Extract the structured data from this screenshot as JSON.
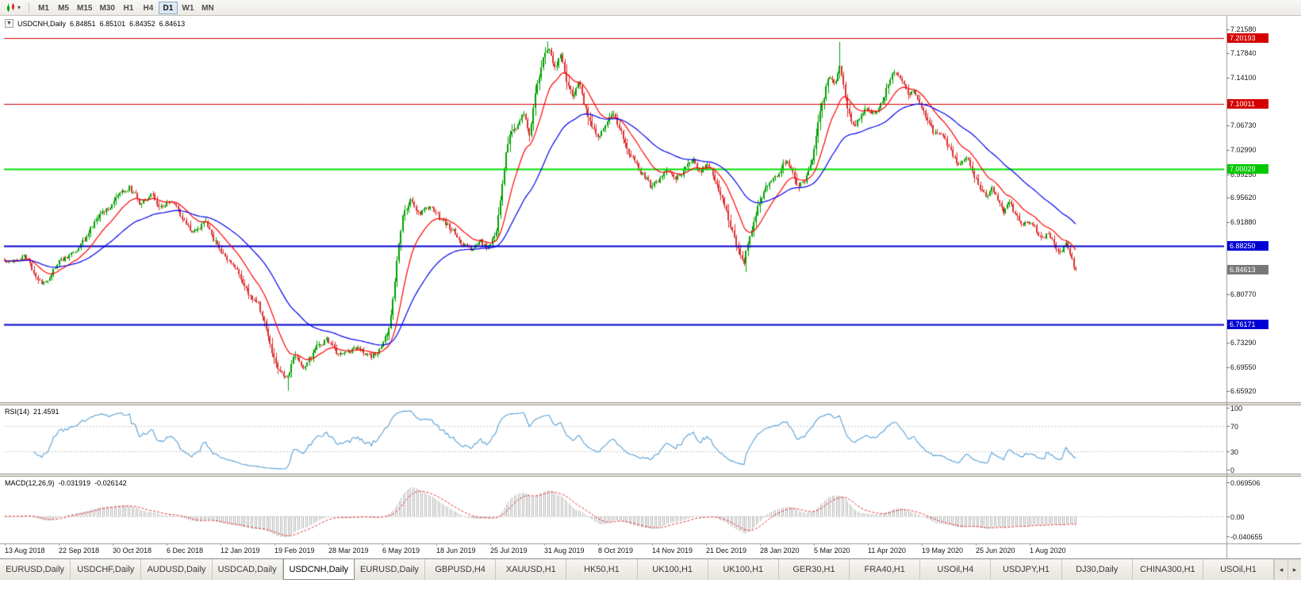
{
  "toolbar": {
    "timeframes": [
      "M1",
      "M5",
      "M15",
      "M30",
      "H1",
      "H4",
      "D1",
      "W1",
      "MN"
    ],
    "active_timeframe": "D1",
    "chart_icon": "candlestick-chart",
    "caret": "▾"
  },
  "chart_header": {
    "collapse_arrow": "▼",
    "symbol": "USDCNH,Daily",
    "open": "6.84851",
    "high": "6.85101",
    "low": "6.84352",
    "close": "6.84613"
  },
  "price_scale": {
    "ticks": [
      "7.21580",
      "7.17840",
      "7.14100",
      "7.06730",
      "7.02990",
      "6.99250",
      "6.95620",
      "6.91880",
      "6.80770",
      "6.73290",
      "6.69550",
      "6.65920"
    ],
    "tags": [
      {
        "label": "7.20193",
        "color": "#d40000"
      },
      {
        "label": "7.10011",
        "color": "#d40000"
      },
      {
        "label": "7.00029",
        "color": "#00c800"
      },
      {
        "label": "6.88250",
        "color": "#0000d4"
      },
      {
        "label": "6.84613",
        "color": "#787878"
      },
      {
        "label": "6.76171",
        "color": "#0000d4"
      }
    ]
  },
  "x_axis": {
    "labels": [
      "13 Aug 2018",
      "22 Sep 2018",
      "30 Oct 2018",
      "6 Dec 2018",
      "12 Jan 2019",
      "19 Feb 2019",
      "28 Mar 2019",
      "6 May 2019",
      "18 Jun 2019",
      "25 Jul 2019",
      "31 Aug 2019",
      "8 Oct 2019",
      "14 Nov 2019",
      "21 Dec 2019",
      "28 Jan 2020",
      "5 Mar 2020",
      "11 Apr 2020",
      "19 May 2020",
      "25 Jun 2020",
      "1 Aug 2020"
    ]
  },
  "rsi_panel": {
    "name": "RSI(14)",
    "value": "21.4591",
    "scale": [
      "100",
      "70",
      "30",
      "0"
    ],
    "levels": [
      70,
      30
    ],
    "line_color": "#569fd6"
  },
  "macd_panel": {
    "name": "MACD(12,26,9)",
    "macd_value": "-0.031919",
    "signal_value": "-0.026142",
    "scale": [
      "0.069506",
      "0.00",
      "-0.040655"
    ],
    "histogram_color": "#b9b9b9",
    "signal_color": "#e33030"
  },
  "chart_data": {
    "type": "candlestick",
    "symbol": "USDCNH",
    "timeframe": "Daily",
    "last": {
      "open": 6.84851,
      "high": 6.85101,
      "low": 6.84352,
      "close": 6.84613
    },
    "y_range": [
      6.6418,
      7.2335
    ],
    "num_candles": 550,
    "up_color": "#00a000",
    "down_color": "#dc3030",
    "ma_fast": {
      "period": 16,
      "color": "#ff0000"
    },
    "ma_slow": {
      "period": 48,
      "color": "#0000ee"
    },
    "hlines": [
      {
        "price": 7.20193,
        "color": "#cc0000",
        "width": 1
      },
      {
        "price": 7.10011,
        "color": "#cc0000",
        "width": 1
      },
      {
        "price": 7.00029,
        "color": "#00dd00",
        "width": 2
      },
      {
        "price": 6.8825,
        "color": "#0000cc",
        "width": 2
      },
      {
        "price": 6.76171,
        "color": "#0000cc",
        "width": 2
      }
    ],
    "extremes": {
      "high1": {
        "range": [
          0.49,
          0.53
        ],
        "value": 7.1965
      },
      "high2": {
        "range": [
          0.76,
          0.8
        ],
        "value": 7.196
      },
      "low1": {
        "range": [
          0.25,
          0.28
        ],
        "value": 6.6595
      },
      "low2": {
        "range": [
          0.68,
          0.7
        ],
        "value": 6.8418
      }
    },
    "price_path_anchors": [
      [
        0.0,
        6.858
      ],
      [
        0.018,
        6.87
      ],
      [
        0.034,
        6.822
      ],
      [
        0.05,
        6.855
      ],
      [
        0.07,
        6.88
      ],
      [
        0.09,
        6.932
      ],
      [
        0.107,
        6.958
      ],
      [
        0.116,
        6.974
      ],
      [
        0.126,
        6.948
      ],
      [
        0.136,
        6.964
      ],
      [
        0.147,
        6.938
      ],
      [
        0.157,
        6.952
      ],
      [
        0.167,
        6.918
      ],
      [
        0.176,
        6.902
      ],
      [
        0.187,
        6.918
      ],
      [
        0.197,
        6.886
      ],
      [
        0.208,
        6.86
      ],
      [
        0.218,
        6.84
      ],
      [
        0.227,
        6.808
      ],
      [
        0.236,
        6.796
      ],
      [
        0.244,
        6.754
      ],
      [
        0.253,
        6.7
      ],
      [
        0.262,
        6.678
      ],
      [
        0.271,
        6.716
      ],
      [
        0.28,
        6.694
      ],
      [
        0.29,
        6.722
      ],
      [
        0.301,
        6.738
      ],
      [
        0.311,
        6.714
      ],
      [
        0.321,
        6.722
      ],
      [
        0.332,
        6.724
      ],
      [
        0.341,
        6.708
      ],
      [
        0.347,
        6.716
      ],
      [
        0.353,
        6.732
      ],
      [
        0.359,
        6.752
      ],
      [
        0.366,
        6.86
      ],
      [
        0.372,
        6.93
      ],
      [
        0.379,
        6.952
      ],
      [
        0.388,
        6.934
      ],
      [
        0.397,
        6.946
      ],
      [
        0.407,
        6.924
      ],
      [
        0.418,
        6.906
      ],
      [
        0.427,
        6.888
      ],
      [
        0.436,
        6.88
      ],
      [
        0.444,
        6.886
      ],
      [
        0.452,
        6.878
      ],
      [
        0.458,
        6.896
      ],
      [
        0.462,
        6.938
      ],
      [
        0.467,
        7.012
      ],
      [
        0.471,
        7.048
      ],
      [
        0.477,
        7.062
      ],
      [
        0.484,
        7.088
      ],
      [
        0.49,
        7.058
      ],
      [
        0.496,
        7.124
      ],
      [
        0.502,
        7.168
      ],
      [
        0.507,
        7.188
      ],
      [
        0.513,
        7.154
      ],
      [
        0.519,
        7.176
      ],
      [
        0.524,
        7.142
      ],
      [
        0.53,
        7.11
      ],
      [
        0.536,
        7.128
      ],
      [
        0.542,
        7.096
      ],
      [
        0.548,
        7.066
      ],
      [
        0.554,
        7.048
      ],
      [
        0.56,
        7.066
      ],
      [
        0.567,
        7.088
      ],
      [
        0.575,
        7.056
      ],
      [
        0.582,
        7.03
      ],
      [
        0.59,
        7.004
      ],
      [
        0.597,
        6.99
      ],
      [
        0.604,
        6.972
      ],
      [
        0.612,
        6.986
      ],
      [
        0.619,
        7.002
      ],
      [
        0.627,
        6.988
      ],
      [
        0.634,
        7.0
      ],
      [
        0.642,
        7.014
      ],
      [
        0.649,
        6.996
      ],
      [
        0.656,
        7.008
      ],
      [
        0.664,
        6.982
      ],
      [
        0.671,
        6.952
      ],
      [
        0.678,
        6.914
      ],
      [
        0.686,
        6.87
      ],
      [
        0.69,
        6.852
      ],
      [
        0.696,
        6.902
      ],
      [
        0.702,
        6.936
      ],
      [
        0.708,
        6.962
      ],
      [
        0.716,
        6.978
      ],
      [
        0.723,
        6.996
      ],
      [
        0.73,
        7.016
      ],
      [
        0.736,
        6.992
      ],
      [
        0.742,
        6.972
      ],
      [
        0.748,
        6.988
      ],
      [
        0.753,
        7.01
      ],
      [
        0.757,
        7.042
      ],
      [
        0.761,
        7.086
      ],
      [
        0.766,
        7.12
      ],
      [
        0.77,
        7.146
      ],
      [
        0.775,
        7.13
      ],
      [
        0.779,
        7.162
      ],
      [
        0.784,
        7.12
      ],
      [
        0.788,
        7.084
      ],
      [
        0.793,
        7.062
      ],
      [
        0.797,
        7.076
      ],
      [
        0.803,
        7.096
      ],
      [
        0.809,
        7.08
      ],
      [
        0.815,
        7.094
      ],
      [
        0.821,
        7.116
      ],
      [
        0.827,
        7.138
      ],
      [
        0.833,
        7.152
      ],
      [
        0.839,
        7.128
      ],
      [
        0.844,
        7.104
      ],
      [
        0.85,
        7.118
      ],
      [
        0.856,
        7.092
      ],
      [
        0.862,
        7.07
      ],
      [
        0.868,
        7.052
      ],
      [
        0.874,
        7.06
      ],
      [
        0.88,
        7.038
      ],
      [
        0.886,
        7.022
      ],
      [
        0.892,
        7.006
      ],
      [
        0.898,
        7.014
      ],
      [
        0.904,
        6.996
      ],
      [
        0.91,
        6.978
      ],
      [
        0.916,
        6.962
      ],
      [
        0.922,
        6.97
      ],
      [
        0.927,
        6.95
      ],
      [
        0.933,
        6.936
      ],
      [
        0.939,
        6.944
      ],
      [
        0.945,
        6.926
      ],
      [
        0.951,
        6.912
      ],
      [
        0.957,
        6.92
      ],
      [
        0.963,
        6.904
      ],
      [
        0.969,
        6.89
      ],
      [
        0.975,
        6.902
      ],
      [
        0.981,
        6.884
      ],
      [
        0.987,
        6.868
      ],
      [
        0.991,
        6.88
      ],
      [
        0.996,
        6.856
      ],
      [
        1.0,
        6.84613
      ]
    ]
  },
  "tabs": {
    "items": [
      "EURUSD,Daily",
      "USDCHF,Daily",
      "AUDUSD,Daily",
      "USDCAD,Daily",
      "USDCNH,Daily",
      "EURUSD,Daily",
      "GBPUSD,H4",
      "XAUUSD,H1",
      "HK50,H1",
      "UK100,H1",
      "UK100,H1",
      "GER30,H1",
      "FRA40,H1",
      "USOil,H4",
      "USDJPY,H1",
      "DJ30,Daily",
      "CHINA300,H1",
      "USOil,H1"
    ],
    "active_index": 4,
    "scroll_left": "◂",
    "scroll_right": "▸"
  }
}
